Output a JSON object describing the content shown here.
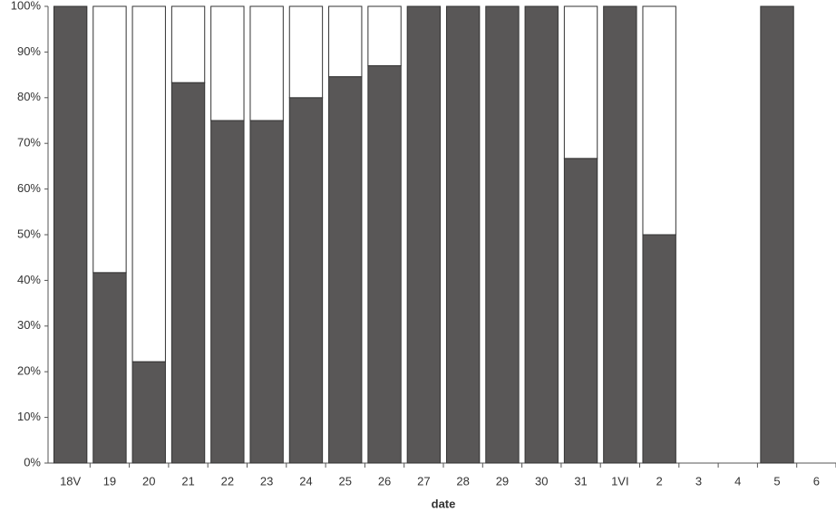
{
  "chart_data": {
    "type": "stacked-bar",
    "x_label": "date",
    "categories": [
      "18V",
      "19",
      "20",
      "21",
      "22",
      "23",
      "24",
      "25",
      "26",
      "27",
      "28",
      "29",
      "30",
      "31",
      "1VI",
      "2",
      "3",
      "4",
      "5",
      "6"
    ],
    "series": [
      {
        "color": "#595757",
        "values": [
          100,
          41.7,
          22.2,
          83.3,
          75,
          75,
          80,
          84.6,
          87,
          100,
          100,
          100,
          100,
          66.7,
          100,
          50,
          null,
          null,
          100,
          null
        ]
      },
      {
        "color": "#ffffff",
        "values": [
          0,
          58.3,
          77.8,
          16.7,
          25,
          25,
          20,
          15.4,
          13,
          0,
          0,
          0,
          0,
          33.3,
          0,
          50,
          null,
          null,
          0,
          null
        ]
      }
    ],
    "ylim": [
      0,
      100
    ],
    "yticks": [
      {
        "value": 0,
        "label": "0%"
      },
      {
        "value": 10,
        "label": "10%"
      },
      {
        "value": 20,
        "label": "20%"
      },
      {
        "value": 30,
        "label": "30%"
      },
      {
        "value": 40,
        "label": "40%"
      },
      {
        "value": 50,
        "label": "50%"
      },
      {
        "value": 60,
        "label": "60%"
      },
      {
        "value": 70,
        "label": "70%"
      },
      {
        "value": 80,
        "label": "80%"
      },
      {
        "value": 90,
        "label": "90%"
      },
      {
        "value": 100,
        "label": "100%"
      }
    ]
  }
}
